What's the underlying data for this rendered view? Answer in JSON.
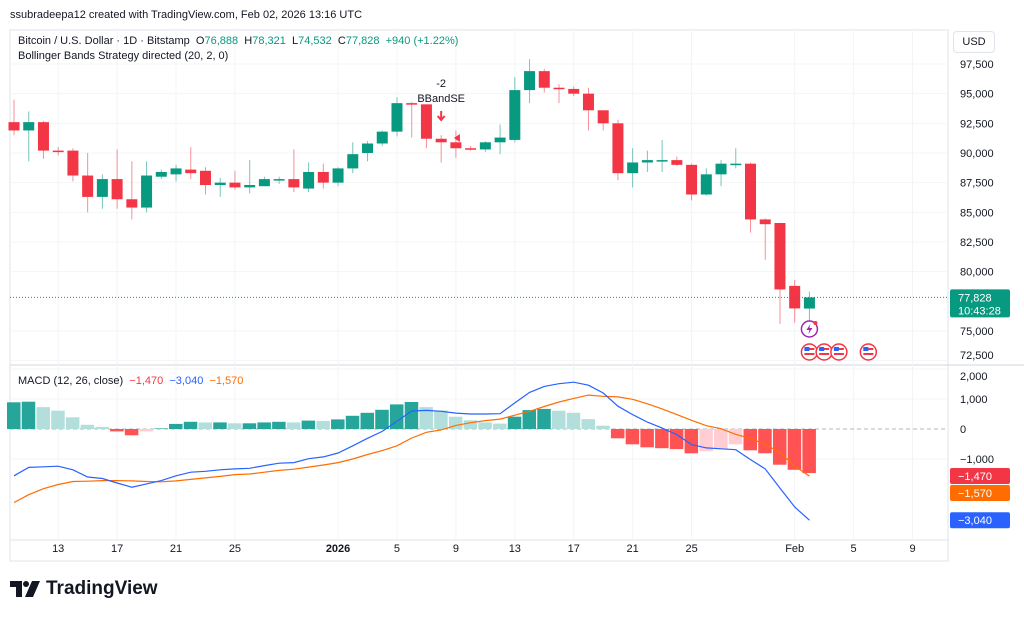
{
  "header": {
    "credit": "ssubradeepa12 created with TradingView.com, Feb 02, 2026 13:16 UTC",
    "symbol": "Bitcoin / U.S. Dollar · 1D · Bitstamp",
    "open_label": "O",
    "open": "76,888",
    "high_label": "H",
    "high": "78,321",
    "low_label": "L",
    "low": "74,532",
    "close_label": "C",
    "close": "77,828",
    "change": "+940 (+1.22%)",
    "strategy": "Bollinger Bands Strategy directed (20, 2, 0)"
  },
  "currency": "USD",
  "price_label": {
    "price": "77,828",
    "countdown": "10:43:28"
  },
  "macd_legend": {
    "title": "MACD (12, 26, close)",
    "hist": "−1,470",
    "macd": "−3,040",
    "signal": "−1,570"
  },
  "macd_labels": {
    "hist": "−1,470",
    "signal": "−1,570",
    "macd": "−3,040"
  },
  "annotation": {
    "qty": "-2",
    "name": "BBandSE"
  },
  "brand": "TradingView",
  "colors": {
    "up": "#089981",
    "down": "#f23645",
    "macd": "#2962ff",
    "signal": "#ff6d00",
    "hist_up_strong": "#26a69a",
    "hist_up_weak": "#b2dfdb",
    "hist_dn_strong": "#ff5252",
    "hist_dn_weak": "#ffcdd2",
    "event": "#9c27b0"
  },
  "chart_data": {
    "type": "candlestick",
    "price_axis": {
      "ticks": [
        97500,
        95000,
        92500,
        90000,
        87500,
        85000,
        82500,
        80000,
        75000,
        72500
      ]
    },
    "macd_axis": {
      "ticks": [
        2000,
        1000,
        0,
        -1000
      ]
    },
    "x_ticks": [
      "13",
      "17",
      "21",
      "25",
      "2026",
      "5",
      "9",
      "13",
      "17",
      "21",
      "25",
      "Feb",
      "5",
      "9"
    ],
    "x_tick_dates": [
      "2025-12-13",
      "2025-12-17",
      "2025-12-21",
      "2025-12-25",
      "2026-01-01",
      "2026-01-05",
      "2026-01-09",
      "2026-01-13",
      "2026-01-17",
      "2026-01-21",
      "2026-01-25",
      "2026-02-01",
      "2026-02-05",
      "2026-02-09"
    ],
    "first_date": "2025-12-10",
    "ohlc": [
      [
        92600,
        94500,
        91500,
        91900
      ],
      [
        91900,
        93500,
        89300,
        92600
      ],
      [
        92600,
        92700,
        89500,
        90200
      ],
      [
        90200,
        90500,
        89800,
        90100
      ],
      [
        90200,
        90400,
        87600,
        88100
      ],
      [
        88100,
        90000,
        85000,
        86300
      ],
      [
        86300,
        88200,
        85300,
        87800
      ],
      [
        87800,
        90300,
        85300,
        86100
      ],
      [
        86100,
        89300,
        84400,
        85400
      ],
      [
        85400,
        89300,
        85000,
        88100
      ],
      [
        88000,
        88600,
        87800,
        88400
      ],
      [
        88200,
        89000,
        87600,
        88700
      ],
      [
        88600,
        90500,
        87800,
        88300
      ],
      [
        88500,
        88800,
        86500,
        87300
      ],
      [
        87300,
        87900,
        86300,
        87500
      ],
      [
        87500,
        88500,
        86900,
        87100
      ],
      [
        87100,
        89400,
        86600,
        87300
      ],
      [
        87200,
        88000,
        87200,
        87800
      ],
      [
        87700,
        88000,
        87400,
        87800
      ],
      [
        87800,
        90300,
        86700,
        87100
      ],
      [
        87000,
        89200,
        86700,
        88400
      ],
      [
        88400,
        89100,
        87000,
        87500
      ],
      [
        87500,
        88800,
        87200,
        88700
      ],
      [
        88700,
        90900,
        88300,
        89900
      ],
      [
        90000,
        91000,
        89300,
        90800
      ],
      [
        90800,
        91900,
        90600,
        91800
      ],
      [
        91800,
        94700,
        91400,
        94200
      ],
      [
        94200,
        94300,
        91300,
        94100
      ],
      [
        94100,
        94100,
        90400,
        91200
      ],
      [
        91200,
        91500,
        89200,
        90900
      ],
      [
        90900,
        91900,
        89600,
        90400
      ],
      [
        90400,
        90600,
        90200,
        90300
      ],
      [
        90300,
        91000,
        90100,
        90900
      ],
      [
        90900,
        92400,
        89900,
        91300
      ],
      [
        91100,
        96400,
        90900,
        95300
      ],
      [
        95300,
        97900,
        94200,
        96900
      ],
      [
        96900,
        97100,
        95100,
        95500
      ],
      [
        95500,
        95800,
        94200,
        95400
      ],
      [
        95400,
        95600,
        94800,
        95000
      ],
      [
        95000,
        95500,
        91900,
        93600
      ],
      [
        93600,
        93600,
        91900,
        92500
      ],
      [
        92500,
        92800,
        87700,
        88300
      ],
      [
        88300,
        90400,
        87100,
        89200
      ],
      [
        89200,
        90200,
        88400,
        89400
      ],
      [
        89400,
        91100,
        88400,
        89400
      ],
      [
        89400,
        89700,
        88900,
        89000
      ],
      [
        89000,
        89100,
        86000,
        86500
      ],
      [
        86500,
        88700,
        86400,
        88200
      ],
      [
        88200,
        89400,
        87200,
        89100
      ],
      [
        89100,
        90400,
        88700,
        89100
      ],
      [
        89100,
        89200,
        83300,
        84400
      ],
      [
        84400,
        84500,
        81000,
        84000
      ],
      [
        84100,
        84100,
        75600,
        78500
      ],
      [
        78800,
        79300,
        75700,
        76900
      ],
      [
        76888,
        78321,
        74532,
        77828
      ]
    ],
    "macd_hist": [
      890,
      910,
      730,
      610,
      390,
      140,
      70,
      -80,
      -210,
      -80,
      20,
      170,
      240,
      220,
      220,
      190,
      190,
      220,
      240,
      220,
      280,
      270,
      320,
      440,
      540,
      640,
      820,
      900,
      730,
      620,
      410,
      290,
      220,
      180,
      410,
      630,
      670,
      610,
      540,
      330,
      110,
      -310,
      -510,
      -610,
      -640,
      -670,
      -810,
      -740,
      -670,
      -510,
      -710,
      -810,
      -1190,
      -1360,
      -1470
    ],
    "macd_line": [
      -1560,
      -1280,
      -1260,
      -1240,
      -1360,
      -1600,
      -1650,
      -1800,
      -1940,
      -1830,
      -1720,
      -1560,
      -1440,
      -1410,
      -1360,
      -1330,
      -1310,
      -1220,
      -1140,
      -1120,
      -990,
      -930,
      -800,
      -560,
      -310,
      -80,
      260,
      600,
      620,
      590,
      530,
      500,
      500,
      510,
      870,
      1220,
      1420,
      1510,
      1560,
      1460,
      1200,
      760,
      480,
      230,
      30,
      -190,
      -520,
      -630,
      -660,
      -690,
      -1020,
      -1330,
      -1970,
      -2600,
      -3040
    ],
    "signal_line": [
      -2450,
      -2190,
      -1990,
      -1850,
      -1750,
      -1740,
      -1720,
      -1720,
      -1730,
      -1750,
      -1760,
      -1730,
      -1680,
      -1630,
      -1580,
      -1520,
      -1500,
      -1440,
      -1380,
      -1340,
      -1270,
      -1200,
      -1120,
      -1000,
      -850,
      -720,
      -560,
      -300,
      -110,
      -30,
      120,
      210,
      280,
      330,
      460,
      590,
      750,
      900,
      1020,
      1130,
      1090,
      1070,
      990,
      840,
      670,
      480,
      290,
      110,
      10,
      -180,
      -310,
      -520,
      -780,
      -1240,
      -1570
    ],
    "signals": [
      {
        "date": "2026-01-08",
        "type": "short-entry",
        "label": "BBandSE",
        "qty": -2
      }
    ],
    "events": [
      {
        "date": "2026-02-02",
        "icon": "lightning-icon"
      },
      {
        "date": "2026-02-02",
        "icon": "us-flag-icon"
      },
      {
        "date": "2026-02-03",
        "icon": "us-flag-icon"
      },
      {
        "date": "2026-02-04",
        "icon": "us-flag-icon"
      },
      {
        "date": "2026-02-06",
        "icon": "us-flag-icon"
      }
    ]
  }
}
